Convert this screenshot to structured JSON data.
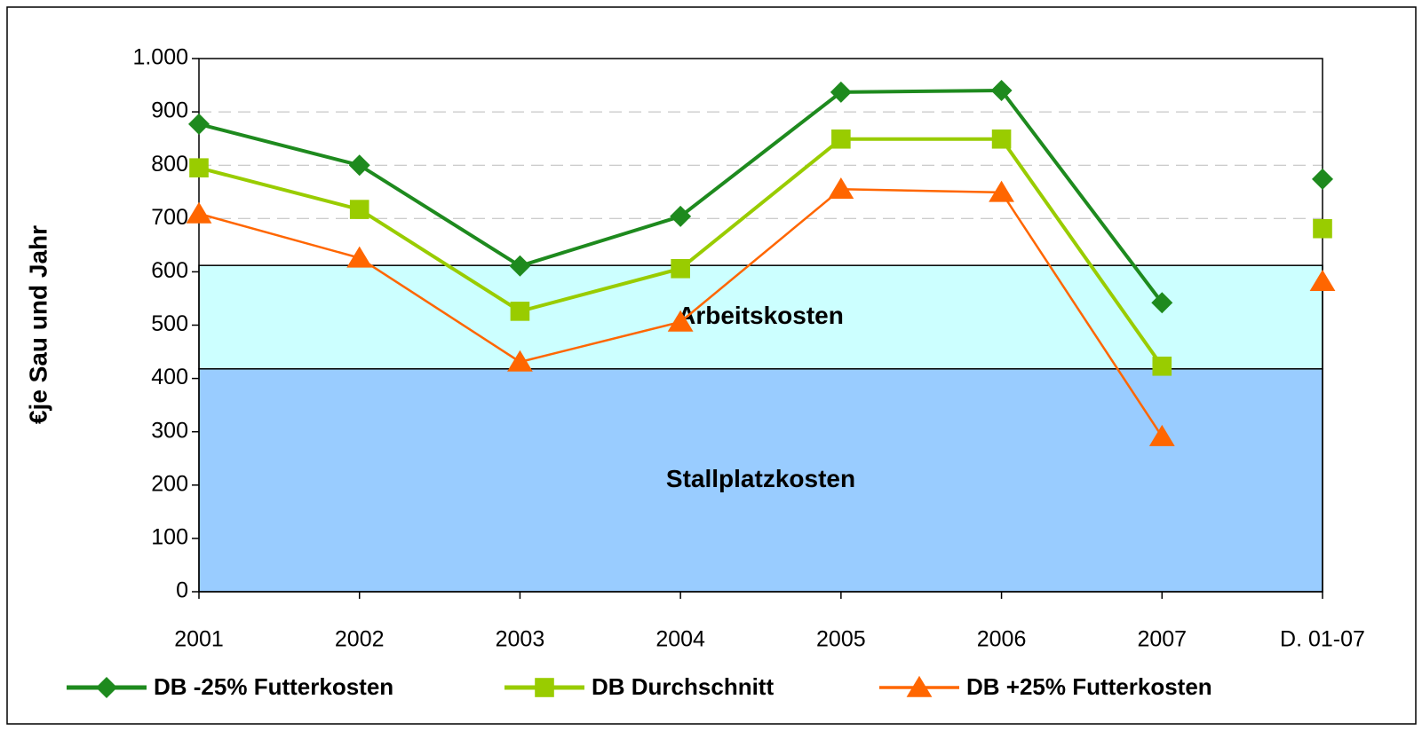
{
  "chart_data": {
    "type": "line",
    "y_label": "€je Sau und Jahr",
    "categories": [
      "2001",
      "2002",
      "2003",
      "2004",
      "2005",
      "2006",
      "2007"
    ],
    "summary": {
      "category": "D. 01-07"
    },
    "ylim": [
      0,
      1000
    ],
    "yticks": [
      0,
      100,
      200,
      300,
      400,
      500,
      600,
      700,
      800,
      900,
      {
        "value": 1000,
        "label": "1.000"
      }
    ],
    "grid": true,
    "bands": [
      {
        "label": "Stallplatzkosten",
        "from": 0,
        "to": 418,
        "color": "#99ccff"
      },
      {
        "label": "Arbeitskosten",
        "from": 418,
        "to": 612,
        "color": "#ccffff"
      }
    ],
    "series": [
      {
        "name": "DB -25% Futterkosten",
        "color": "#1e8a1e",
        "marker": "diamond",
        "width": 4,
        "values": [
          877,
          800,
          611,
          704,
          937,
          940,
          542
        ],
        "summary": 774
      },
      {
        "name": "DB Durchschnitt",
        "color": "#99cc00",
        "marker": "square",
        "width": 4,
        "values": [
          795,
          717,
          526,
          606,
          849,
          849,
          423
        ],
        "summary": 681
      },
      {
        "name": "DB +25% Futterkosten",
        "color": "#ff6600",
        "marker": "triangle",
        "width": 2.5,
        "values": [
          709,
          626,
          431,
          506,
          755,
          749,
          291
        ],
        "summary": 582
      }
    ],
    "legend": "bottom"
  }
}
